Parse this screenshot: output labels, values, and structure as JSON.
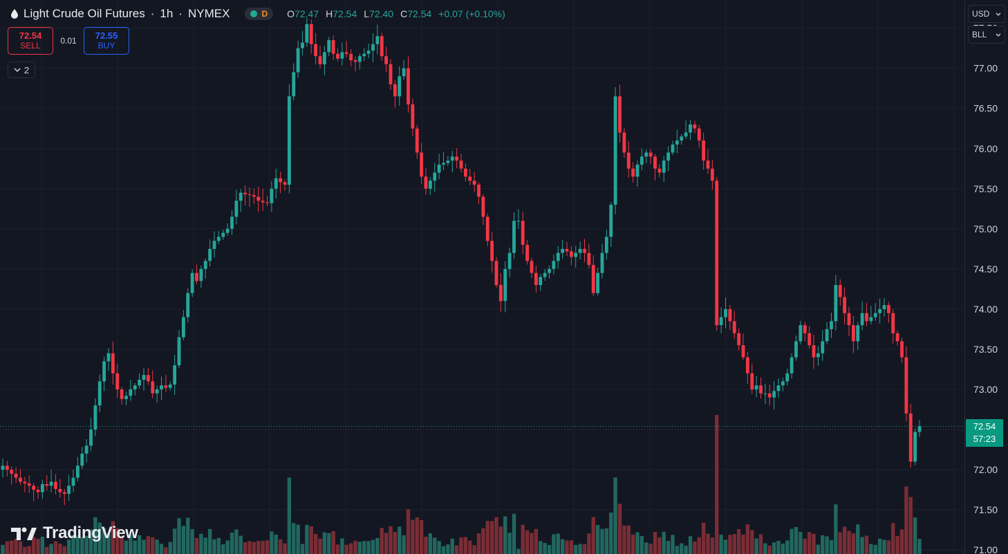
{
  "header": {
    "title": "Light Crude Oil Futures",
    "interval": "1h",
    "exchange": "NYMEX",
    "separator": "·",
    "session_badge": "D",
    "ohlc": {
      "o_label": "O",
      "o": "72.47",
      "h_label": "H",
      "h": "72.54",
      "l_label": "L",
      "l": "72.40",
      "c_label": "C",
      "c": "72.54",
      "change": "+0.07 (+0.10%)"
    }
  },
  "trade": {
    "sell_price": "72.54",
    "sell_label": "SELL",
    "spread": "0.01",
    "buy_price": "72.55",
    "buy_label": "BUY"
  },
  "indicators_toggle": {
    "count": "2"
  },
  "currency": {
    "value": "USD"
  },
  "unit": {
    "value": "BLL"
  },
  "last_price": {
    "price": "72.54",
    "countdown": "57:23"
  },
  "logo": {
    "text": "TradingView"
  },
  "colors": {
    "background": "#131722",
    "up": "#26a69a",
    "down": "#f23645",
    "up_volume": "#22675f",
    "down_volume": "#7a2d35",
    "grid": "#1e222d"
  },
  "chart_data": {
    "type": "candlestick",
    "title": "Light Crude Oil Futures · 1h · NYMEX",
    "ylim": [
      70.95,
      77.85
    ],
    "y_ticks": [
      71.0,
      71.5,
      72.0,
      72.5,
      73.0,
      73.5,
      74.0,
      74.5,
      75.0,
      75.5,
      76.0,
      76.5,
      77.0,
      77.5
    ],
    "last_price": 72.54,
    "close": [
      72.05,
      72.0,
      71.95,
      71.9,
      71.85,
      71.83,
      71.8,
      71.75,
      71.72,
      71.82,
      71.8,
      71.85,
      71.76,
      71.72,
      71.7,
      71.8,
      71.9,
      72.05,
      72.2,
      72.3,
      72.5,
      72.8,
      73.1,
      73.35,
      73.45,
      73.2,
      73.0,
      72.88,
      72.92,
      73.0,
      73.05,
      73.12,
      73.18,
      73.1,
      72.95,
      73.0,
      73.05,
      73.02,
      73.06,
      73.3,
      73.65,
      73.9,
      74.2,
      74.45,
      74.35,
      74.5,
      74.6,
      74.75,
      74.85,
      74.9,
      74.95,
      75.0,
      75.15,
      75.35,
      75.45,
      75.43,
      75.42,
      75.4,
      75.35,
      75.33,
      75.32,
      75.5,
      75.63,
      75.58,
      75.55,
      76.65,
      76.95,
      77.25,
      77.32,
      77.55,
      77.3,
      77.15,
      77.05,
      77.2,
      77.35,
      77.18,
      77.12,
      77.2,
      77.18,
      77.1,
      77.08,
      77.15,
      77.18,
      77.22,
      77.3,
      77.4,
      77.15,
      77.05,
      76.8,
      76.65,
      76.9,
      77.0,
      76.55,
      76.25,
      75.95,
      75.65,
      75.5,
      75.6,
      75.7,
      75.8,
      75.82,
      75.85,
      75.9,
      75.85,
      75.75,
      75.65,
      75.6,
      75.55,
      75.4,
      75.15,
      74.85,
      74.6,
      74.3,
      74.1,
      74.5,
      74.7,
      75.1,
      75.1,
      74.8,
      74.6,
      74.45,
      74.3,
      74.4,
      74.45,
      74.5,
      74.6,
      74.7,
      74.75,
      74.72,
      74.65,
      74.7,
      74.75,
      74.7,
      74.55,
      74.2,
      74.45,
      74.7,
      74.9,
      75.3,
      76.65,
      76.2,
      75.95,
      75.75,
      75.65,
      75.8,
      75.9,
      75.95,
      75.9,
      75.75,
      75.7,
      75.85,
      75.95,
      76.05,
      76.1,
      76.15,
      76.2,
      76.3,
      76.25,
      76.1,
      75.85,
      75.75,
      75.6,
      73.8,
      73.9,
      74.0,
      73.85,
      73.7,
      73.55,
      73.4,
      73.2,
      73.0,
      73.05,
      72.95,
      72.95,
      72.9,
      72.98,
      73.05,
      73.1,
      73.2,
      73.4,
      73.6,
      73.8,
      73.7,
      73.55,
      73.4,
      73.45,
      73.6,
      73.75,
      73.85,
      74.3,
      74.15,
      73.95,
      73.8,
      73.6,
      73.8,
      73.95,
      73.85,
      73.9,
      73.95,
      74.0,
      74.05,
      73.95,
      73.7,
      73.6,
      73.4,
      72.7,
      72.1,
      72.47,
      72.54
    ],
    "volume_max": 1000
  }
}
